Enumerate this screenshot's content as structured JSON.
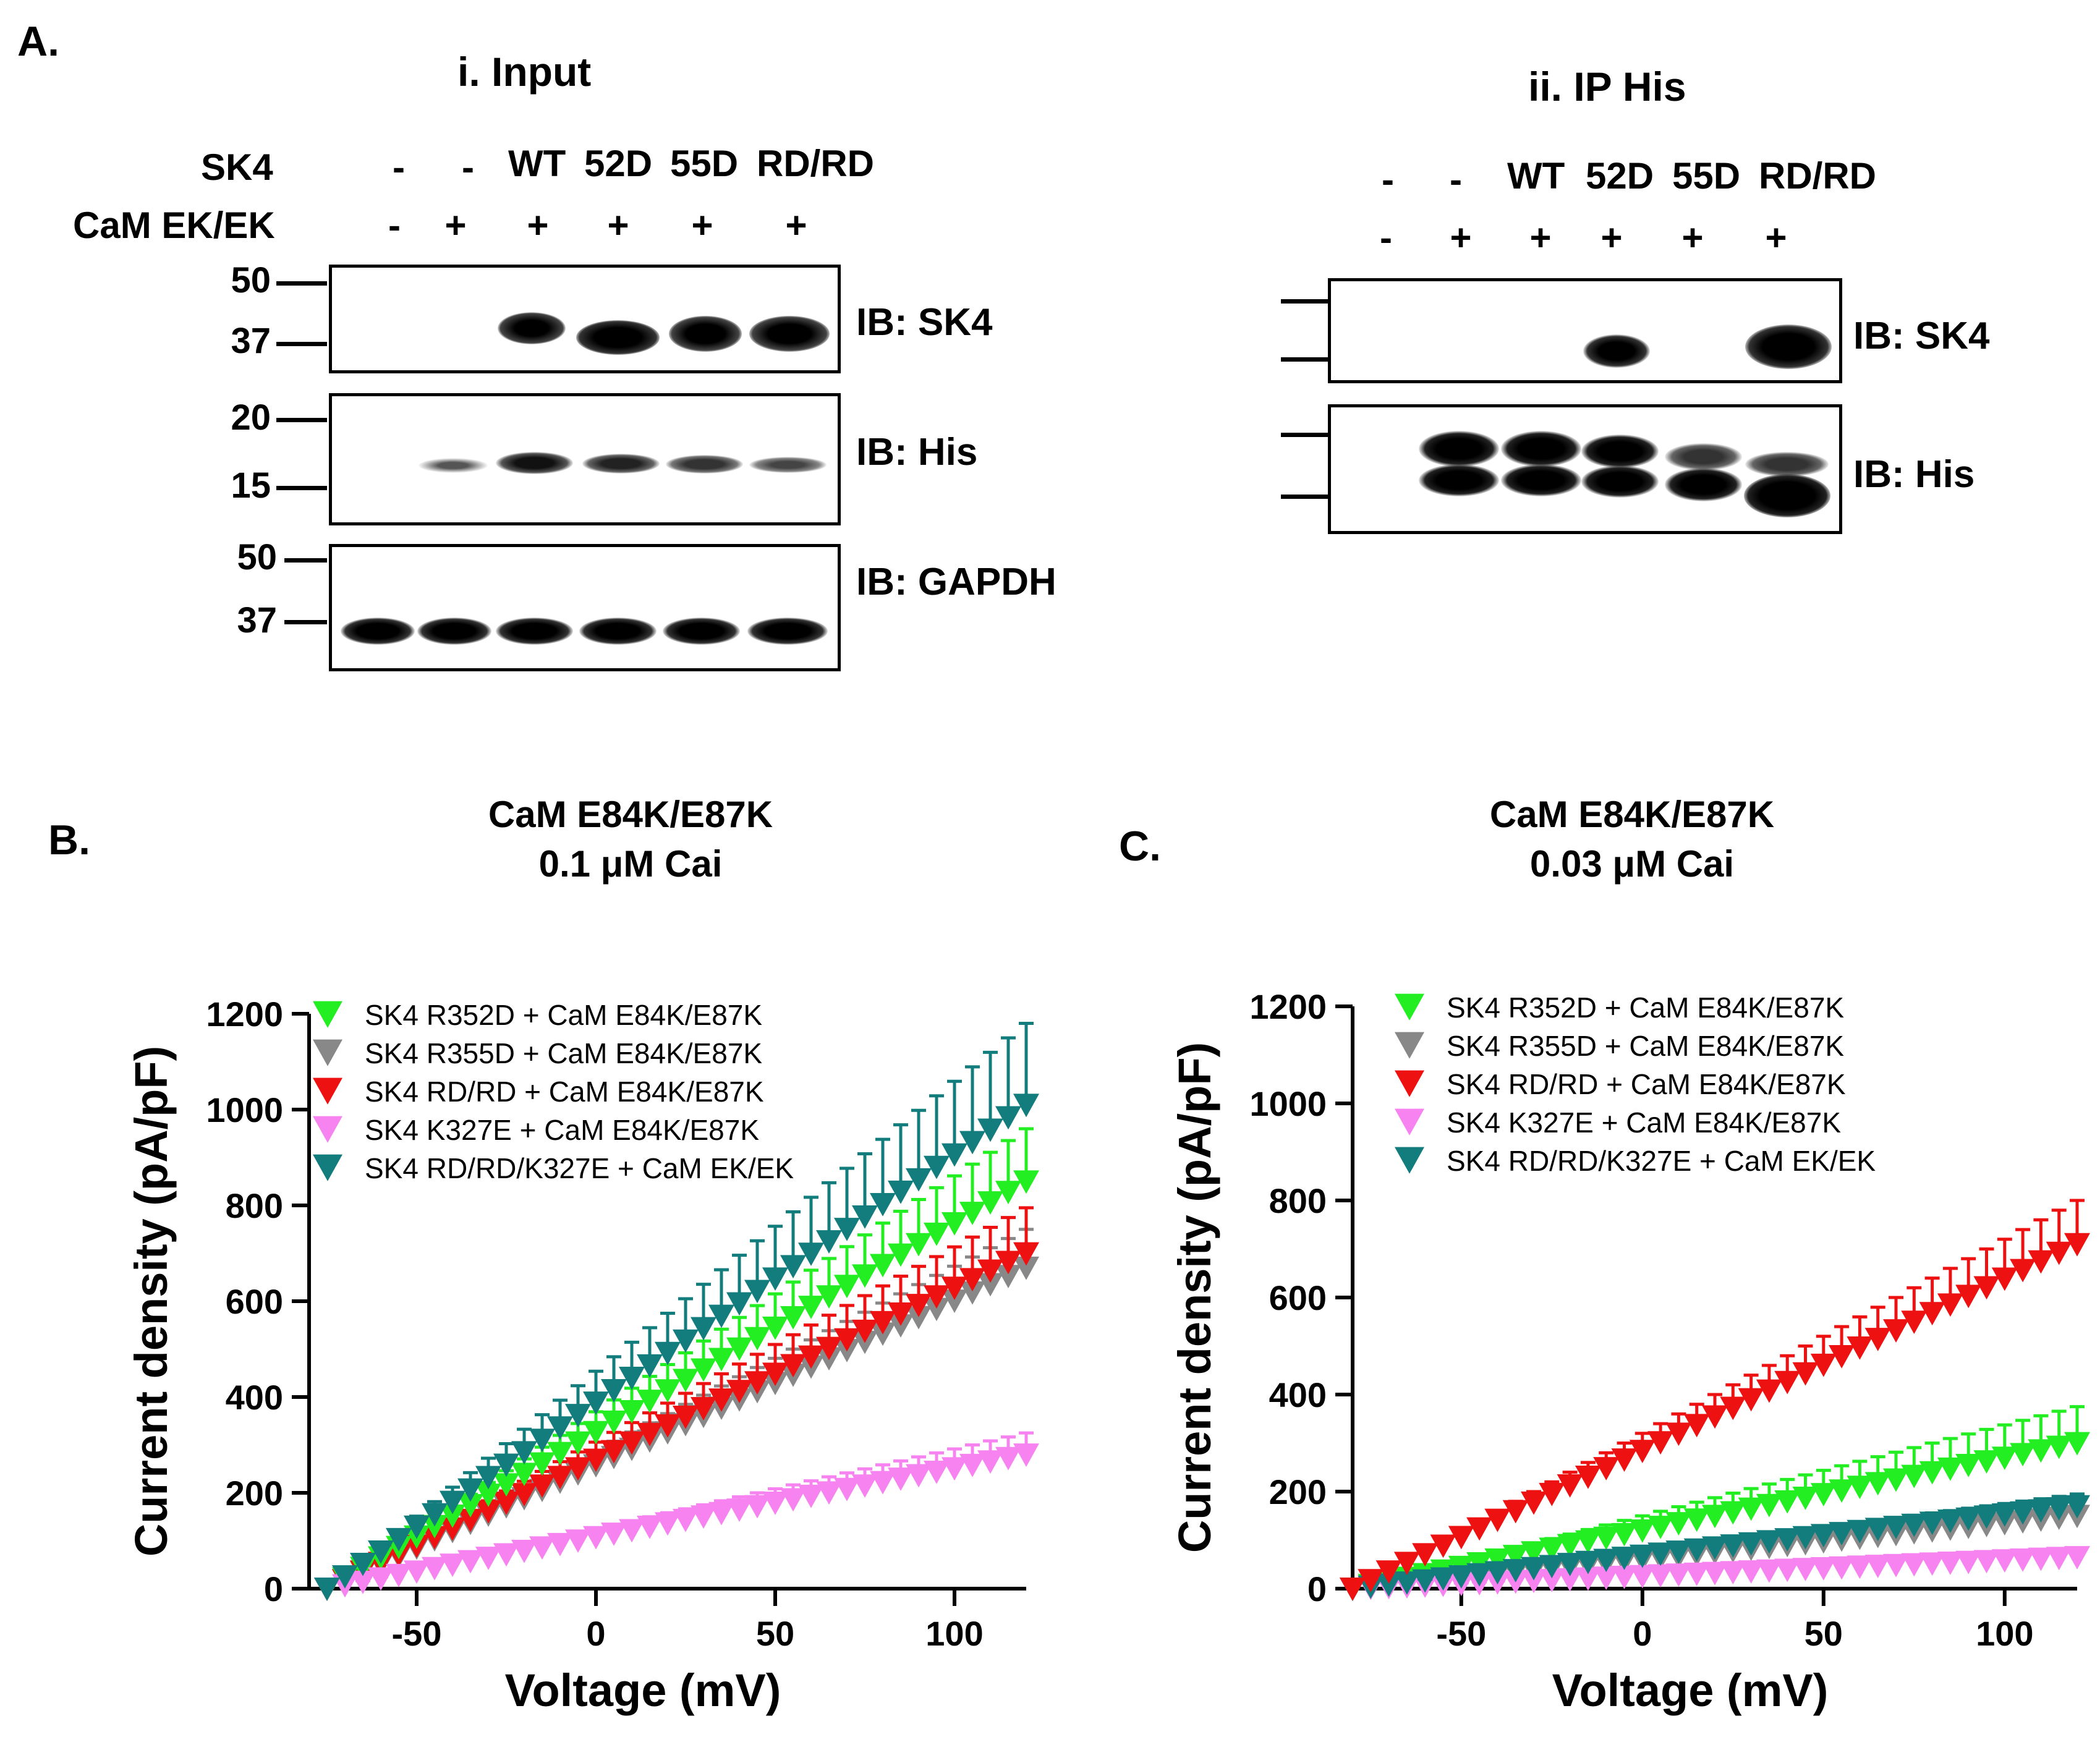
{
  "panel_a": {
    "letter": "A.",
    "input": {
      "title": "i.  Input",
      "row_sk4_label": "SK4",
      "row_cam_label": "CaM EK/EK",
      "sk4_lanes": [
        "-",
        "-",
        "WT",
        "52D",
        "55D",
        "RD/RD"
      ],
      "cam_lanes": [
        "-",
        "+",
        "+",
        "+",
        "+",
        "+"
      ],
      "blots": [
        {
          "label": "IB: SK4",
          "markers": [
            "50",
            "37"
          ]
        },
        {
          "label": "IB: His",
          "markers": [
            "20",
            "15"
          ]
        },
        {
          "label": "IB: GAPDH",
          "markers": [
            "50",
            "37"
          ]
        }
      ]
    },
    "ip": {
      "title": "ii.   IP His",
      "sk4_lanes": [
        "-",
        "-",
        "WT",
        "52D",
        "55D",
        "RD/RD"
      ],
      "cam_lanes": [
        "-",
        "+",
        "+",
        "+",
        "+",
        "+"
      ],
      "blots": [
        {
          "label": "IB: SK4"
        },
        {
          "label": "IB: His"
        }
      ]
    }
  },
  "colors": {
    "green": "#22ee22",
    "gray": "#888888",
    "red": "#ee1111",
    "pink": "#f683f0",
    "teal": "#137d7d"
  },
  "chart_data": [
    {
      "panel": "B.",
      "type": "line",
      "title": "CaM E84K/E87K",
      "subtitle": "0.1 μM Cai",
      "xlabel": "Voltage (mV)",
      "ylabel": "Current density (pA/pF)",
      "xlim": [
        -80,
        120
      ],
      "ylim": [
        0,
        1200
      ],
      "xticks": [
        -50,
        0,
        50,
        100
      ],
      "yticks": [
        0,
        200,
        400,
        600,
        800,
        1000,
        1200
      ],
      "marker": "down-triangle",
      "v_start": -75,
      "v_end": 120,
      "legend": "top-left",
      "series": [
        {
          "name": "SK4 R352D + CaM E84K/E87K",
          "color": "green",
          "end_value": 850,
          "end_err": 110,
          "start_value": 0,
          "order": 2
        },
        {
          "name": "SK4 R355D + CaM E84K/E87K",
          "color": "gray",
          "end_value": 670,
          "end_err": 80,
          "start_value": 0,
          "order": 0
        },
        {
          "name": "SK4 RD/RD + CaM E84K/E87K",
          "color": "red",
          "end_value": 700,
          "end_err": 95,
          "start_value": 0,
          "order": 1
        },
        {
          "name": "SK4 K327E + CaM E84K/E87K",
          "color": "pink",
          "end_value": 280,
          "end_err": 45,
          "start_value": 0,
          "order": 3
        },
        {
          "name": "SK4 RD/RD/K327E + CaM EK/EK",
          "color": "teal",
          "end_value": 1010,
          "end_err": 170,
          "start_value": 0,
          "order": 4
        }
      ]
    },
    {
      "panel": "C.",
      "type": "line",
      "title": "CaM E84K/E87K",
      "subtitle": "0.03 μM Cai",
      "xlabel": "Voltage (mV)",
      "ylabel": "Current density (pA/pF)",
      "xlim": [
        -80,
        120
      ],
      "ylim": [
        0,
        1200
      ],
      "xticks": [
        -50,
        0,
        50,
        100
      ],
      "yticks": [
        0,
        200,
        400,
        600,
        800,
        1000,
        1200
      ],
      "marker": "down-triangle",
      "v_start": -80,
      "v_end": 120,
      "legend": "top-left",
      "series": [
        {
          "name": "SK4 R352D + CaM E84K/E87K",
          "color": "green",
          "end_value": 300,
          "end_err": 75,
          "start_value": 0,
          "order": 2
        },
        {
          "name": "SK4 R355D + CaM E84K/E87K",
          "color": "gray",
          "end_value": 150,
          "end_err": 30,
          "start_value": 0,
          "order": 0
        },
        {
          "name": "SK4 RD/RD + CaM E84K/E87K",
          "color": "red",
          "end_value": 710,
          "end_err": 90,
          "start_value": 0,
          "order": 4
        },
        {
          "name": "SK4 K327E + CaM E84K/E87K",
          "color": "pink",
          "end_value": 65,
          "end_err": 15,
          "start_value": 0,
          "order": 1
        },
        {
          "name": "SK4 RD/RD/K327E + CaM EK/EK",
          "color": "teal",
          "end_value": 170,
          "end_err": 25,
          "start_value": 0,
          "order": 3
        }
      ]
    }
  ]
}
